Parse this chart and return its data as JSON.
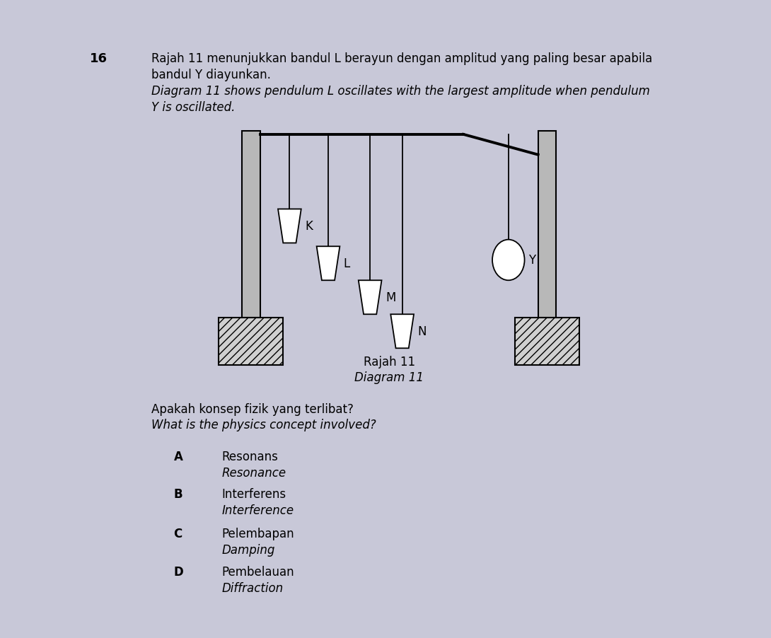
{
  "background_color": "#c8c8d8",
  "page_color": "#f0f0f0",
  "question_number": "16",
  "question_text_line1": "Rajah 11 menunjukkan bandul L berayun dengan amplitud yang paling besar apabila",
  "question_text_line2": "bandul Y diayunkan.",
  "question_text_line3": "Diagram 11 shows pendulum L oscillates with the largest amplitude when pendulum",
  "question_text_line4": "Y is oscillated.",
  "diagram_label": "Rajah 11",
  "diagram_label2": "Diagram 11",
  "concept_question_line1": "Apakah konsep fizik yang terlibat?",
  "concept_question_line2": "What is the physics concept involved?",
  "options": [
    {
      "letter": "A",
      "text1": "Resonans",
      "text2": "Resonance"
    },
    {
      "letter": "B",
      "text1": "Interferens",
      "text2": "Interference"
    },
    {
      "letter": "C",
      "text1": "Pelembapan",
      "text2": "Damping"
    },
    {
      "letter": "D",
      "text1": "Pembelauan",
      "text2": "Diffraction"
    }
  ]
}
